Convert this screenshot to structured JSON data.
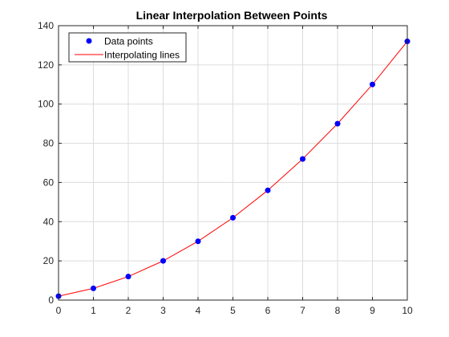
{
  "chart_data": {
    "type": "line",
    "title": "Linear Interpolation Between Points",
    "xlabel": "",
    "ylabel": "",
    "xlim": [
      0,
      10
    ],
    "ylim": [
      0,
      140
    ],
    "xticks": [
      0,
      1,
      2,
      3,
      4,
      5,
      6,
      7,
      8,
      9,
      10
    ],
    "yticks": [
      0,
      20,
      40,
      60,
      80,
      100,
      120,
      140
    ],
    "grid": true,
    "legend_position": "top-left",
    "x": [
      0,
      1,
      2,
      3,
      4,
      5,
      6,
      7,
      8,
      9,
      10
    ],
    "series": [
      {
        "name": "Data points",
        "style": "markers",
        "color": "#0000ff",
        "values": [
          2,
          6,
          12,
          20,
          30,
          42,
          56,
          72,
          90,
          110,
          132
        ]
      },
      {
        "name": "Interpolating lines",
        "style": "line",
        "color": "#ff0000",
        "values": [
          2,
          6,
          12,
          20,
          30,
          42,
          56,
          72,
          90,
          110,
          132
        ]
      }
    ]
  }
}
